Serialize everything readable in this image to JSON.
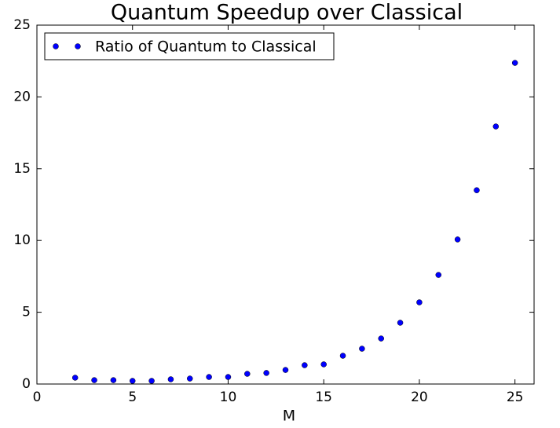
{
  "chart_data": {
    "type": "scatter",
    "title": "Quantum Speedup over Classical",
    "x_label": "M",
    "series": [
      {
        "name": "Ratio of Quantum to Classical",
        "color": "#0000ff",
        "x": [
          2,
          3,
          4,
          5,
          6,
          7,
          8,
          9,
          10,
          11,
          12,
          13,
          14,
          15,
          16,
          17,
          18,
          19,
          20,
          21,
          22,
          23,
          24,
          25
        ],
        "values": [
          0.44,
          0.27,
          0.27,
          0.22,
          0.22,
          0.33,
          0.38,
          0.49,
          0.49,
          0.71,
          0.77,
          0.98,
          1.31,
          1.37,
          1.97,
          2.46,
          3.17,
          4.27,
          5.69,
          7.6,
          10.07,
          13.5,
          17.94,
          22.37
        ]
      }
    ],
    "xlim": [
      0,
      26
    ],
    "xticks": [
      0,
      5,
      10,
      15,
      20,
      25
    ],
    "ylim": [
      0,
      25
    ],
    "yticks": [
      0,
      5,
      10,
      15,
      20,
      25
    ],
    "legend": "upper left"
  }
}
